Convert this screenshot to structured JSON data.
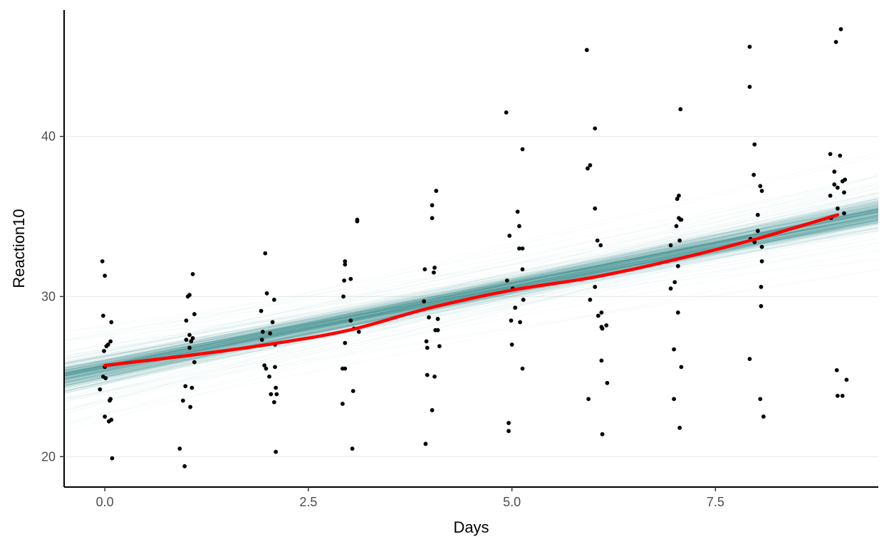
{
  "chart_data": {
    "type": "scatter",
    "title": "",
    "xlabel": "Days",
    "ylabel": "Reaction10",
    "xlim": [
      -0.5,
      9.5
    ],
    "ylim": [
      18.1,
      47.9
    ],
    "x_ticks": [
      0,
      2.5,
      5,
      7.5
    ],
    "x_tick_labels": [
      "0.0",
      "2.5",
      "5.0",
      "7.5"
    ],
    "y_ticks": [
      20,
      30,
      40
    ],
    "y_tick_labels": [
      "20",
      "30",
      "40"
    ],
    "grid": "horizontal major",
    "legend": "none",
    "colors": {
      "points": "#000000",
      "trend": "#ff0000",
      "bands": "#3d9494",
      "grid": "#ebebeb",
      "axis": "#000000"
    },
    "points": [
      {
        "x": -0.03,
        "y": 32.2
      },
      {
        "x": 0.0,
        "y": 31.3
      },
      {
        "x": -0.02,
        "y": 28.8
      },
      {
        "x": 0.08,
        "y": 28.4
      },
      {
        "x": 0.07,
        "y": 27.2
      },
      {
        "x": 0.04,
        "y": 27.0
      },
      {
        "x": 0.02,
        "y": 26.9
      },
      {
        "x": -0.01,
        "y": 26.6
      },
      {
        "x": 0.0,
        "y": 25.6
      },
      {
        "x": -0.02,
        "y": 25.0
      },
      {
        "x": 0.01,
        "y": 24.9
      },
      {
        "x": -0.06,
        "y": 24.2
      },
      {
        "x": 0.07,
        "y": 23.6
      },
      {
        "x": 0.06,
        "y": 23.5
      },
      {
        "x": 0.0,
        "y": 22.5
      },
      {
        "x": 0.08,
        "y": 22.3
      },
      {
        "x": 0.05,
        "y": 22.2
      },
      {
        "x": 0.09,
        "y": 19.9
      },
      {
        "x": 1.08,
        "y": 31.4
      },
      {
        "x": 1.04,
        "y": 30.1
      },
      {
        "x": 1.02,
        "y": 30.0
      },
      {
        "x": 1.1,
        "y": 28.9
      },
      {
        "x": 1.0,
        "y": 28.5
      },
      {
        "x": 1.04,
        "y": 27.6
      },
      {
        "x": 1.08,
        "y": 27.4
      },
      {
        "x": 1.0,
        "y": 27.3
      },
      {
        "x": 1.06,
        "y": 27.2
      },
      {
        "x": 1.04,
        "y": 26.8
      },
      {
        "x": 1.1,
        "y": 25.9
      },
      {
        "x": 0.99,
        "y": 24.4
      },
      {
        "x": 1.07,
        "y": 24.3
      },
      {
        "x": 0.96,
        "y": 23.5
      },
      {
        "x": 1.05,
        "y": 23.1
      },
      {
        "x": 0.92,
        "y": 20.5
      },
      {
        "x": 0.98,
        "y": 19.4
      },
      {
        "x": 1.97,
        "y": 32.7
      },
      {
        "x": 1.99,
        "y": 30.2
      },
      {
        "x": 2.08,
        "y": 29.8
      },
      {
        "x": 1.92,
        "y": 29.1
      },
      {
        "x": 2.06,
        "y": 28.4
      },
      {
        "x": 1.94,
        "y": 27.8
      },
      {
        "x": 2.03,
        "y": 27.7
      },
      {
        "x": 1.93,
        "y": 27.3
      },
      {
        "x": 2.09,
        "y": 27.0
      },
      {
        "x": 1.96,
        "y": 25.7
      },
      {
        "x": 2.09,
        "y": 25.6
      },
      {
        "x": 1.98,
        "y": 25.5
      },
      {
        "x": 2.02,
        "y": 25.0
      },
      {
        "x": 2.1,
        "y": 24.3
      },
      {
        "x": 2.04,
        "y": 23.9
      },
      {
        "x": 2.11,
        "y": 23.9
      },
      {
        "x": 2.08,
        "y": 23.4
      },
      {
        "x": 2.1,
        "y": 20.3
      },
      {
        "x": 3.1,
        "y": 34.8
      },
      {
        "x": 3.1,
        "y": 34.7
      },
      {
        "x": 2.95,
        "y": 32.2
      },
      {
        "x": 2.95,
        "y": 32.0
      },
      {
        "x": 3.02,
        "y": 31.1
      },
      {
        "x": 2.94,
        "y": 31.0
      },
      {
        "x": 2.93,
        "y": 30.0
      },
      {
        "x": 3.02,
        "y": 28.5
      },
      {
        "x": 3.06,
        "y": 28.0
      },
      {
        "x": 3.12,
        "y": 27.8
      },
      {
        "x": 2.95,
        "y": 27.1
      },
      {
        "x": 2.92,
        "y": 25.5
      },
      {
        "x": 2.95,
        "y": 25.5
      },
      {
        "x": 3.05,
        "y": 24.1
      },
      {
        "x": 2.92,
        "y": 23.3
      },
      {
        "x": 3.04,
        "y": 20.5
      },
      {
        "x": 4.07,
        "y": 36.6
      },
      {
        "x": 4.02,
        "y": 35.7
      },
      {
        "x": 4.02,
        "y": 34.9
      },
      {
        "x": 4.05,
        "y": 31.8
      },
      {
        "x": 3.93,
        "y": 31.7
      },
      {
        "x": 4.04,
        "y": 31.5
      },
      {
        "x": 3.92,
        "y": 29.7
      },
      {
        "x": 3.98,
        "y": 28.7
      },
      {
        "x": 4.09,
        "y": 28.6
      },
      {
        "x": 4.09,
        "y": 27.9
      },
      {
        "x": 4.06,
        "y": 27.9
      },
      {
        "x": 3.95,
        "y": 27.2
      },
      {
        "x": 4.11,
        "y": 26.9
      },
      {
        "x": 3.96,
        "y": 26.8
      },
      {
        "x": 3.96,
        "y": 25.1
      },
      {
        "x": 4.05,
        "y": 25.0
      },
      {
        "x": 4.02,
        "y": 22.9
      },
      {
        "x": 3.94,
        "y": 20.8
      },
      {
        "x": 4.93,
        "y": 41.5
      },
      {
        "x": 5.13,
        "y": 39.2
      },
      {
        "x": 5.07,
        "y": 35.3
      },
      {
        "x": 5.09,
        "y": 34.4
      },
      {
        "x": 4.97,
        "y": 33.8
      },
      {
        "x": 5.09,
        "y": 33.0
      },
      {
        "x": 5.13,
        "y": 33.0
      },
      {
        "x": 5.13,
        "y": 31.7
      },
      {
        "x": 4.94,
        "y": 31.0
      },
      {
        "x": 5.01,
        "y": 30.5
      },
      {
        "x": 5.14,
        "y": 29.8
      },
      {
        "x": 5.04,
        "y": 29.3
      },
      {
        "x": 4.99,
        "y": 28.5
      },
      {
        "x": 5.1,
        "y": 28.4
      },
      {
        "x": 5.0,
        "y": 27.0
      },
      {
        "x": 5.13,
        "y": 25.5
      },
      {
        "x": 4.96,
        "y": 22.1
      },
      {
        "x": 4.96,
        "y": 21.6
      },
      {
        "x": 5.92,
        "y": 45.4
      },
      {
        "x": 6.02,
        "y": 40.5
      },
      {
        "x": 5.96,
        "y": 38.2
      },
      {
        "x": 5.93,
        "y": 38.0
      },
      {
        "x": 6.02,
        "y": 35.5
      },
      {
        "x": 6.05,
        "y": 33.5
      },
      {
        "x": 6.09,
        "y": 33.2
      },
      {
        "x": 6.02,
        "y": 30.6
      },
      {
        "x": 5.96,
        "y": 29.8
      },
      {
        "x": 6.1,
        "y": 29.0
      },
      {
        "x": 6.06,
        "y": 28.8
      },
      {
        "x": 6.16,
        "y": 28.2
      },
      {
        "x": 6.1,
        "y": 28.1
      },
      {
        "x": 6.11,
        "y": 28.0
      },
      {
        "x": 6.1,
        "y": 26.0
      },
      {
        "x": 6.17,
        "y": 24.6
      },
      {
        "x": 5.94,
        "y": 23.6
      },
      {
        "x": 6.11,
        "y": 21.4
      },
      {
        "x": 7.07,
        "y": 41.7
      },
      {
        "x": 7.05,
        "y": 36.3
      },
      {
        "x": 7.03,
        "y": 36.1
      },
      {
        "x": 7.05,
        "y": 34.9
      },
      {
        "x": 7.07,
        "y": 34.8
      },
      {
        "x": 7.08,
        "y": 34.8
      },
      {
        "x": 7.02,
        "y": 34.4
      },
      {
        "x": 7.06,
        "y": 33.5
      },
      {
        "x": 6.95,
        "y": 33.2
      },
      {
        "x": 7.04,
        "y": 31.9
      },
      {
        "x": 7.0,
        "y": 30.9
      },
      {
        "x": 6.95,
        "y": 30.5
      },
      {
        "x": 7.04,
        "y": 29.0
      },
      {
        "x": 6.99,
        "y": 26.7
      },
      {
        "x": 7.08,
        "y": 25.6
      },
      {
        "x": 6.99,
        "y": 23.6
      },
      {
        "x": 7.06,
        "y": 21.8
      },
      {
        "x": 7.92,
        "y": 45.6
      },
      {
        "x": 7.92,
        "y": 43.1
      },
      {
        "x": 7.98,
        "y": 39.5
      },
      {
        "x": 7.97,
        "y": 37.6
      },
      {
        "x": 8.05,
        "y": 36.9
      },
      {
        "x": 8.07,
        "y": 36.6
      },
      {
        "x": 8.02,
        "y": 35.1
      },
      {
        "x": 8.02,
        "y": 34.1
      },
      {
        "x": 7.93,
        "y": 33.6
      },
      {
        "x": 7.98,
        "y": 33.4
      },
      {
        "x": 8.07,
        "y": 33.1
      },
      {
        "x": 8.07,
        "y": 32.2
      },
      {
        "x": 8.06,
        "y": 30.6
      },
      {
        "x": 8.06,
        "y": 29.4
      },
      {
        "x": 7.92,
        "y": 26.1
      },
      {
        "x": 8.05,
        "y": 23.6
      },
      {
        "x": 8.09,
        "y": 22.5
      },
      {
        "x": 9.04,
        "y": 46.7
      },
      {
        "x": 8.98,
        "y": 45.9
      },
      {
        "x": 8.91,
        "y": 38.9
      },
      {
        "x": 9.03,
        "y": 38.8
      },
      {
        "x": 8.96,
        "y": 37.8
      },
      {
        "x": 9.09,
        "y": 37.3
      },
      {
        "x": 9.06,
        "y": 37.2
      },
      {
        "x": 8.96,
        "y": 37.0
      },
      {
        "x": 9.0,
        "y": 36.8
      },
      {
        "x": 9.08,
        "y": 36.5
      },
      {
        "x": 8.91,
        "y": 36.3
      },
      {
        "x": 9.0,
        "y": 35.5
      },
      {
        "x": 9.08,
        "y": 35.2
      },
      {
        "x": 8.92,
        "y": 34.9
      },
      {
        "x": 8.99,
        "y": 25.4
      },
      {
        "x": 9.11,
        "y": 24.8
      },
      {
        "x": 9.0,
        "y": 23.8
      },
      {
        "x": 9.06,
        "y": 23.8
      }
    ],
    "trend_line": {
      "x": [
        0,
        1,
        2,
        3,
        4,
        5,
        6,
        7,
        8,
        9
      ],
      "y": [
        25.7,
        26.3,
        27.0,
        27.9,
        29.3,
        30.4,
        31.2,
        32.3,
        33.6,
        35.1
      ]
    },
    "posterior_band": {
      "x": [
        -0.5,
        9.5
      ],
      "center": [
        25.0,
        35.2
      ],
      "inner_halfwidth": [
        0.9,
        0.9
      ],
      "outer_halfwidth": [
        2.5,
        2.5
      ]
    }
  }
}
